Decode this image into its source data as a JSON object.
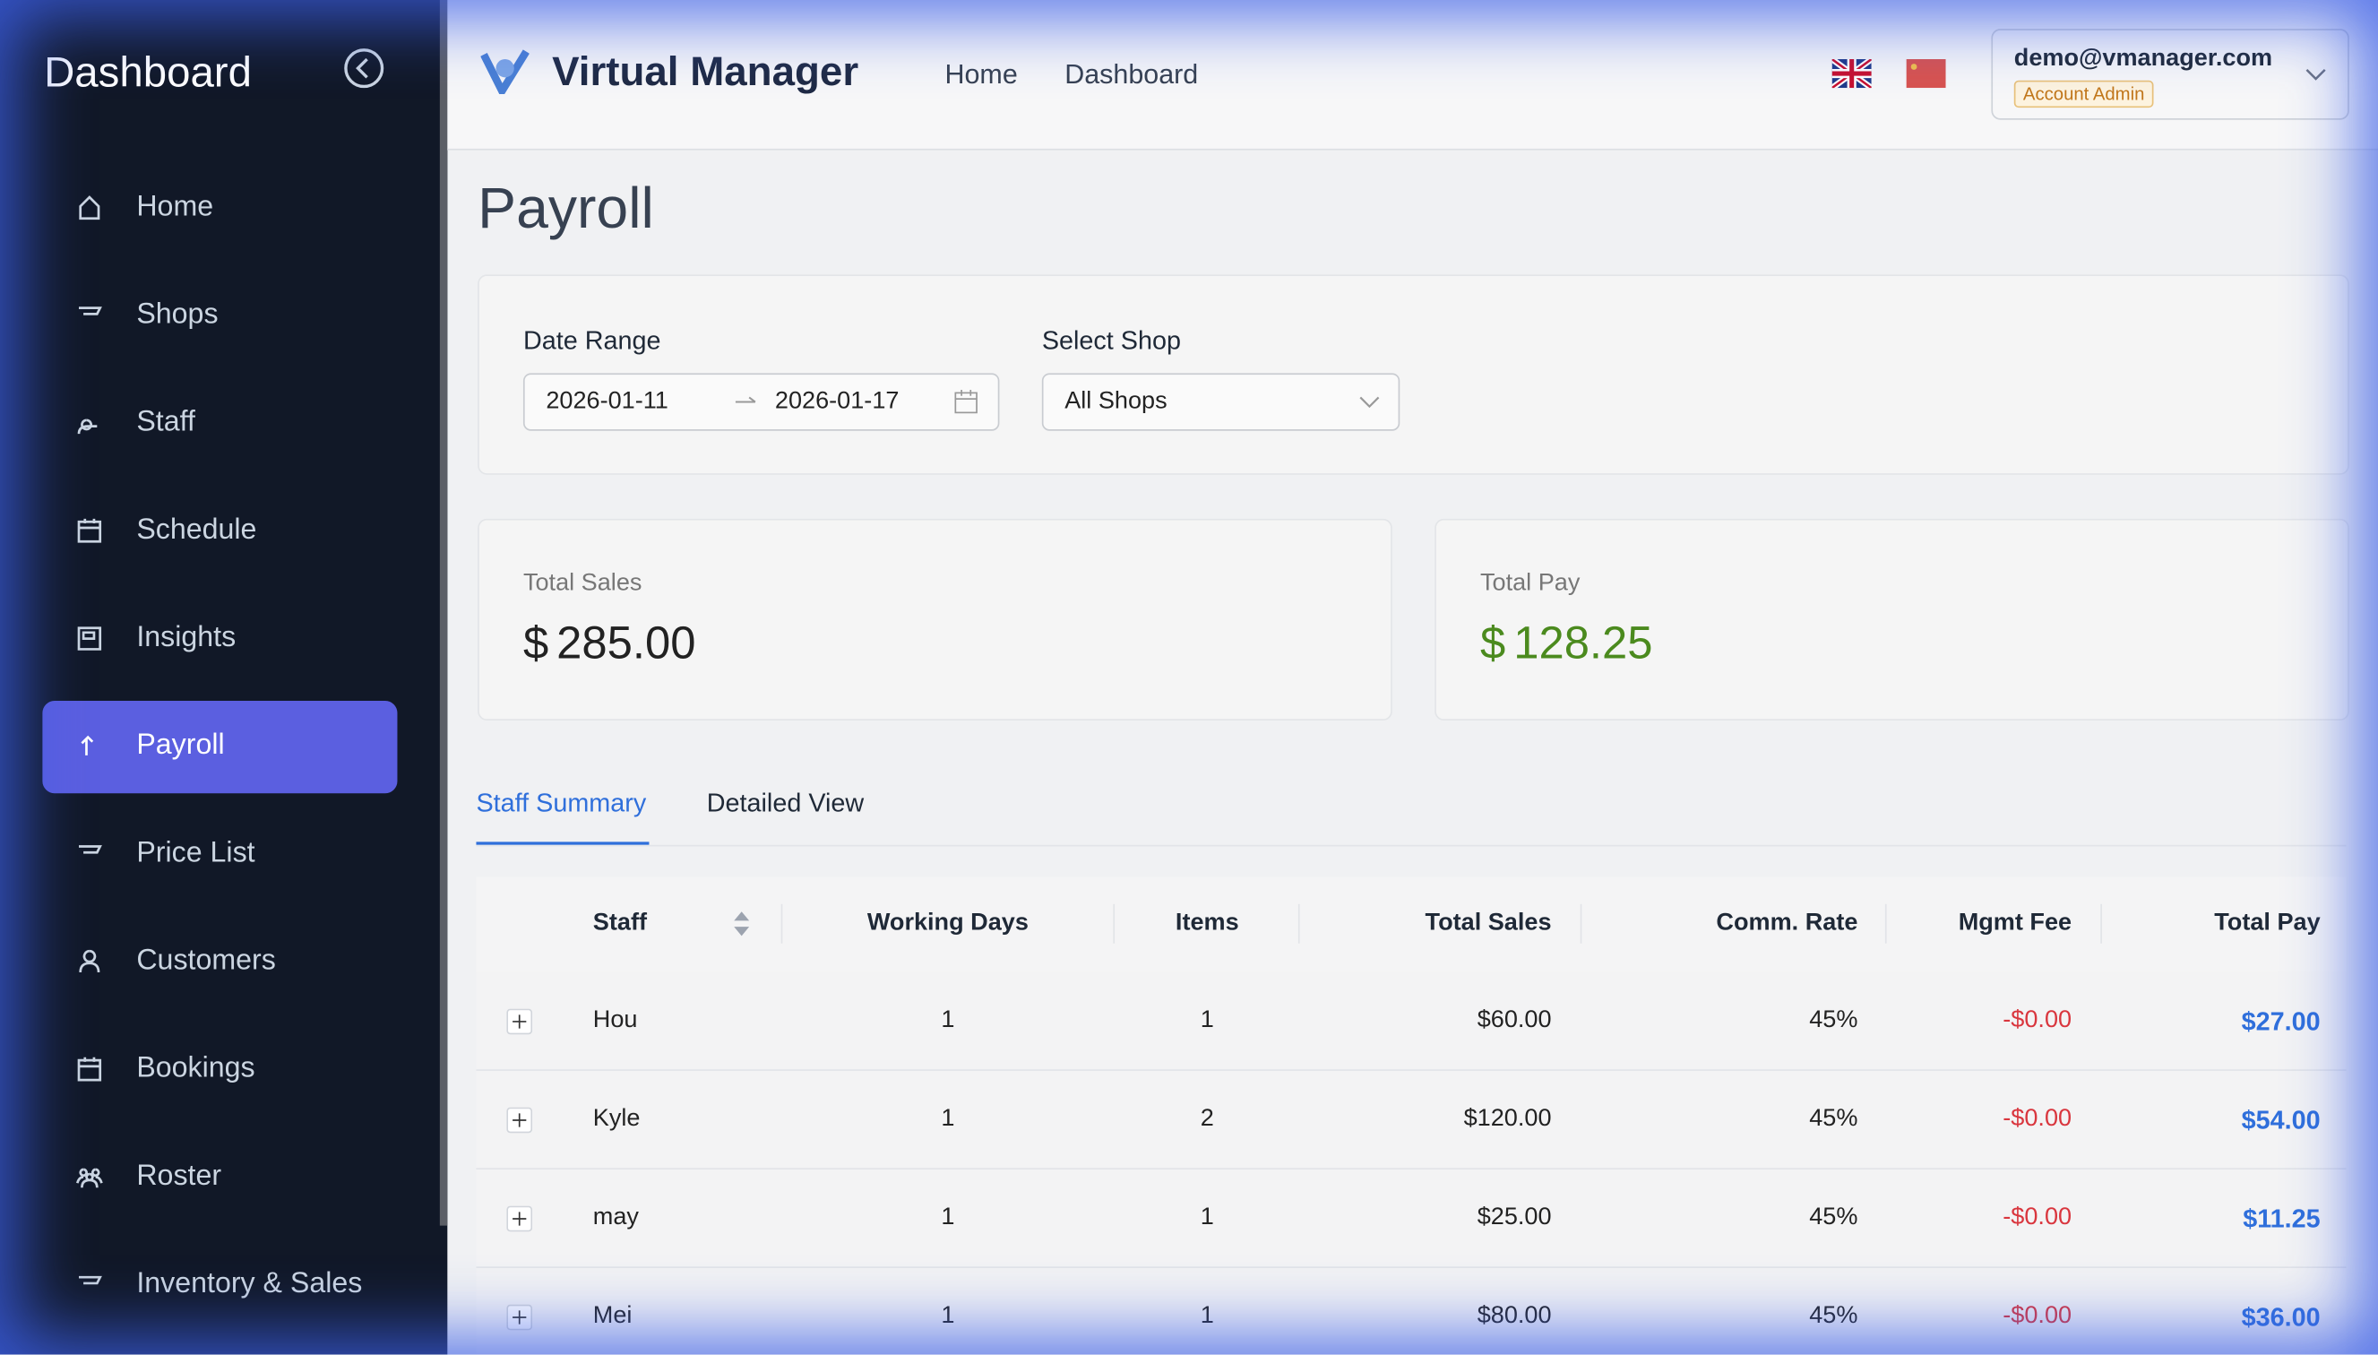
{
  "sidebar": {
    "title": "Dashboard",
    "items": [
      "Home",
      "Shops",
      "Staff",
      "Schedule",
      "Insights",
      "Payroll",
      "Price List",
      "Customers",
      "Bookings",
      "Roster",
      "Inventory & Sales"
    ],
    "active_index": 5
  },
  "header": {
    "brand": "Virtual Manager",
    "nav": [
      "Home",
      "Dashboard"
    ],
    "user_email": "demo@vmanager.com",
    "user_role": "Account Admin"
  },
  "page_title": "Payroll",
  "filters": {
    "date_label": "Date Range",
    "date_start": "2026-01-11",
    "date_end": "2026-01-17",
    "shop_label": "Select Shop",
    "shop_value": "All Shops"
  },
  "summary": [
    {
      "label": "Total Sales",
      "currency": "$",
      "value": "285.00"
    },
    {
      "label": "Total Pay",
      "currency": "$",
      "value": "128.25"
    }
  ],
  "tabs": [
    "Staff Summary",
    "Detailed View"
  ],
  "table": {
    "columns": [
      "Staff",
      "Working Days",
      "Items",
      "Total Sales",
      "Comm. Rate",
      "Mgmt Fee",
      "Total Pay"
    ],
    "rows": [
      [
        "Hou",
        "1",
        "1",
        "$60.00",
        "45%",
        "-$0.00",
        "$27.00"
      ],
      [
        "Kyle",
        "1",
        "2",
        "$120.00",
        "45%",
        "-$0.00",
        "$54.00"
      ],
      [
        "may",
        "1",
        "1",
        "$25.00",
        "45%",
        "-$0.00",
        "$11.25"
      ],
      [
        "Mei",
        "1",
        "1",
        "$80.00",
        "45%",
        "-$0.00",
        "$36.00"
      ]
    ]
  }
}
